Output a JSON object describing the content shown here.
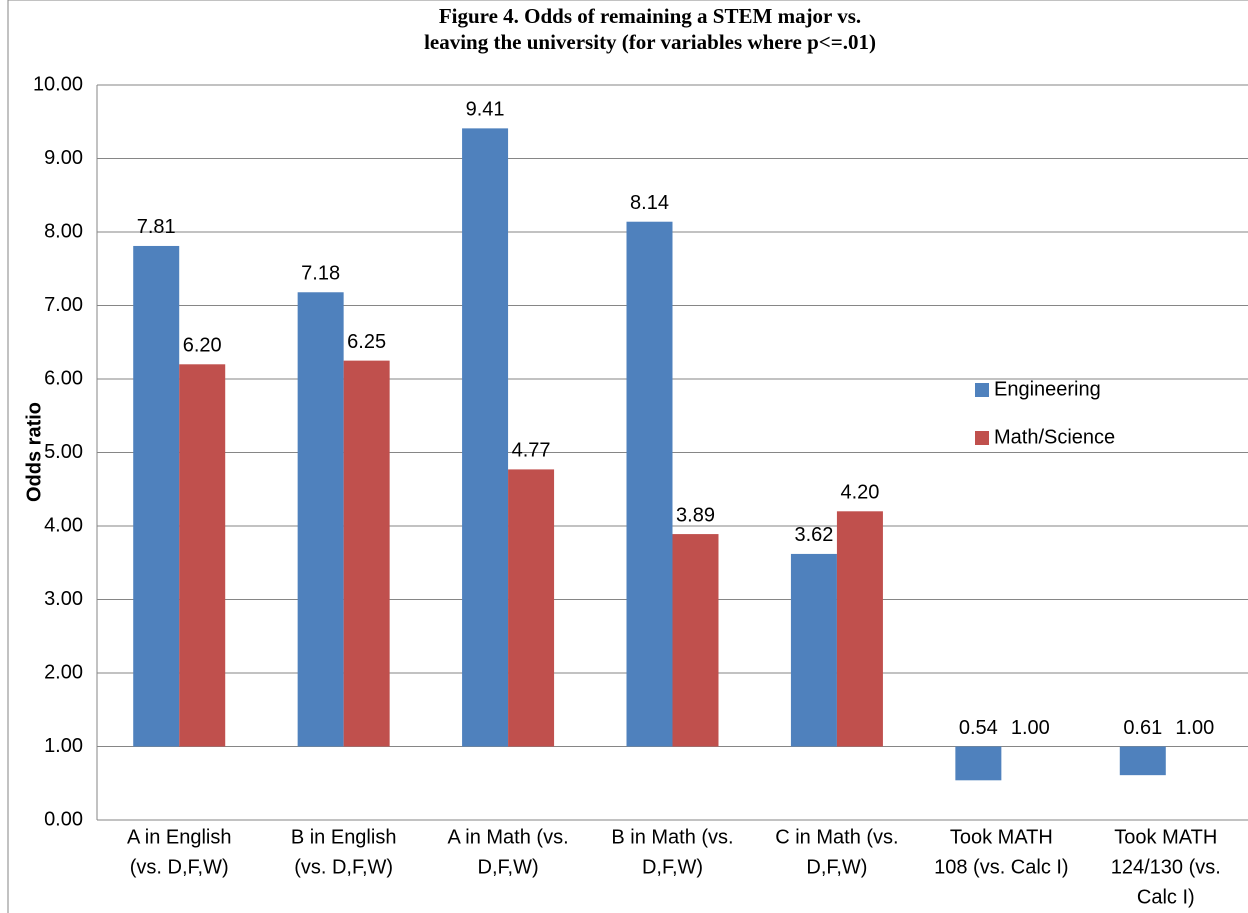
{
  "chart_data": {
    "type": "bar",
    "title": [
      "Figure 4. Odds of remaining a STEM major vs.",
      "leaving the university (for variables where p<=.01)"
    ],
    "y_label": "Odds ratio",
    "categories": [
      [
        "A in English",
        "(vs. D,F,W)"
      ],
      [
        "B in English",
        "(vs. D,F,W)"
      ],
      [
        "A in Math (vs.",
        "D,F,W)"
      ],
      [
        "B in Math (vs.",
        "D,F,W)"
      ],
      [
        "C in Math (vs.",
        "D,F,W)"
      ],
      [
        "Took MATH",
        "108 (vs. Calc I)"
      ],
      [
        "Took MATH",
        "124/130 (vs.",
        "Calc I)"
      ]
    ],
    "series": [
      {
        "name": "Engineering",
        "color": "#4f81bd",
        "values": [
          7.81,
          7.18,
          9.41,
          8.14,
          3.62,
          0.54,
          0.61
        ],
        "value_labels": [
          "7.81",
          "7.18",
          "9.41",
          "8.14",
          "3.62",
          "0.54",
          "0.61"
        ]
      },
      {
        "name": "Math/Science",
        "color": "#c0504d",
        "values": [
          6.2,
          6.25,
          4.77,
          3.89,
          4.2,
          1,
          1
        ],
        "value_labels": [
          "6.20",
          "6.25",
          "4.77",
          "3.89",
          "4.20",
          "1.00",
          "1.00"
        ]
      }
    ],
    "ylim": [
      0,
      10
    ],
    "yticks": [
      {
        "value": 0,
        "label": "0.00"
      },
      {
        "value": 1,
        "label": "1.00"
      },
      {
        "value": 2,
        "label": "2.00"
      },
      {
        "value": 3,
        "label": "3.00"
      },
      {
        "value": 4,
        "label": "4.00"
      },
      {
        "value": 5,
        "label": "5.00"
      },
      {
        "value": 6,
        "label": "6.00"
      },
      {
        "value": 7,
        "label": "7.00"
      },
      {
        "value": 8,
        "label": "8.00"
      },
      {
        "value": 9,
        "label": "9.00"
      },
      {
        "value": 10,
        "label": "10.00"
      }
    ],
    "bar_base": 1,
    "grid": true,
    "legend": "right"
  }
}
